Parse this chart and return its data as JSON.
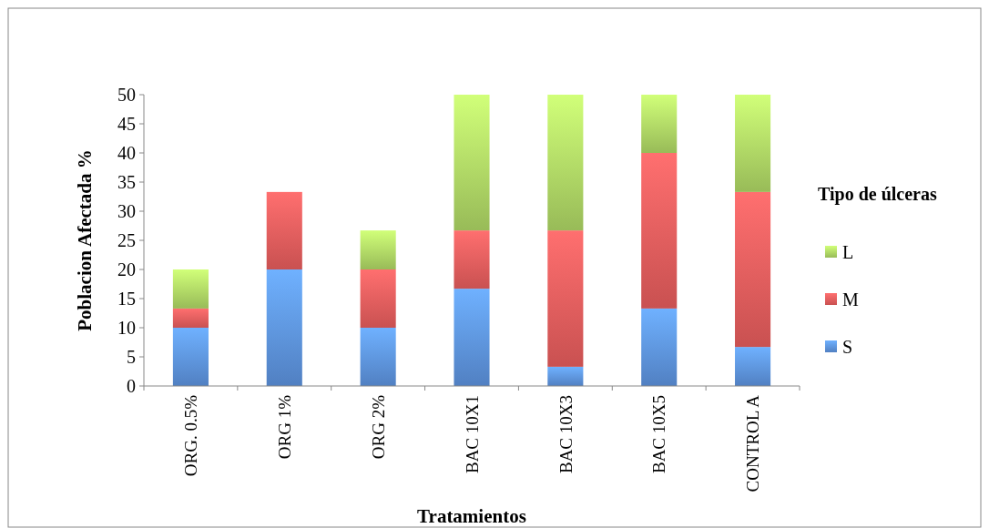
{
  "chart_data": {
    "type": "bar",
    "stacked": true,
    "xlabel": "Tratamientos",
    "ylabel": "Poblacion Afectada %",
    "legend_title": "Tipo de úlceras",
    "legend": "right",
    "grid": false,
    "categories": [
      "ORG. 0.5%",
      "ORG 1%",
      "ORG 2%",
      "BAC 10X1",
      "BAC 10X3",
      "BAC 10X5",
      "CONTROL A"
    ],
    "series": [
      {
        "name": "S",
        "color": "#5a8fd8",
        "values": [
          10,
          20,
          10,
          16.7,
          3.3,
          13.3,
          6.7
        ]
      },
      {
        "name": "M",
        "color": "#e05a5a",
        "values": [
          3.3,
          13.3,
          10,
          10,
          23.4,
          26.7,
          26.6
        ]
      },
      {
        "name": "L",
        "color": "#a9d062",
        "values": [
          6.7,
          0,
          6.7,
          23.3,
          23.3,
          10,
          16.7
        ]
      }
    ],
    "ylim": [
      0,
      50
    ],
    "yticks": [
      0,
      5,
      10,
      15,
      20,
      25,
      30,
      35,
      40,
      45,
      50
    ]
  }
}
